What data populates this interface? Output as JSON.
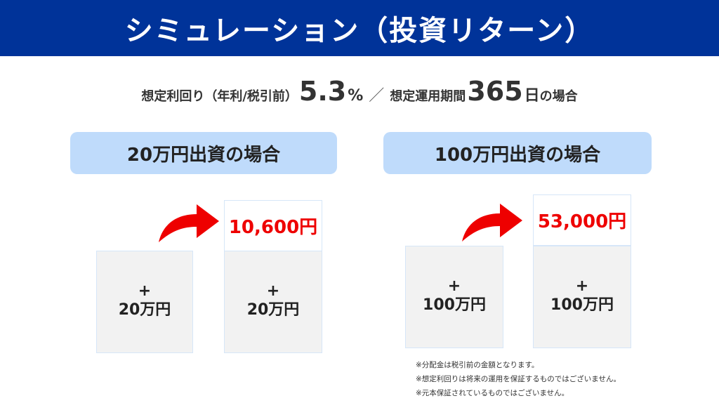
{
  "header": {
    "title": "シミュレーション（投資リターン）"
  },
  "subtitle": {
    "prefix": "想定利回り（年利/税引前）",
    "rate_value": "5.3",
    "rate_unit": "%",
    "separator": "／",
    "period_label": "想定運用期間",
    "period_value": "365",
    "period_unit": "日",
    "suffix": "の場合"
  },
  "cases": [
    {
      "label": "20万円出資の場合",
      "before": {
        "plus": "+",
        "amount": "20万円"
      },
      "result": "10,600円",
      "after": {
        "plus": "+",
        "amount": "20万円"
      }
    },
    {
      "label": "100万円出資の場合",
      "before": {
        "plus": "+",
        "amount": "100万円"
      },
      "result": "53,000円",
      "after": {
        "plus": "+",
        "amount": "100万円"
      }
    }
  ],
  "notes": [
    "※分配金は税引前の金額となります。",
    "※想定利回りは将来の運用を保証するものではございません。",
    "※元本保証されているものではございません。"
  ],
  "colors": {
    "header_bg": "#003399",
    "label_bg": "#bfdbfb",
    "result_text": "#ee0000",
    "arrow": "#ee0000",
    "box_bg": "#f2f2f2"
  },
  "icons": {
    "arrow": "curved-up-right-arrow-icon"
  }
}
